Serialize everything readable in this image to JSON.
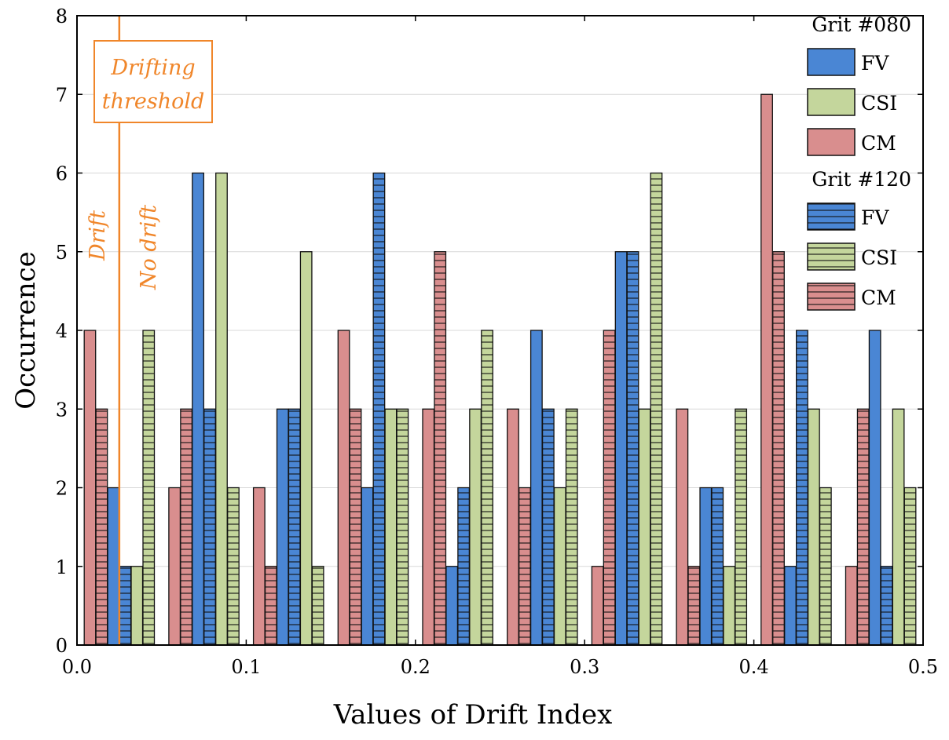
{
  "chart_data": {
    "type": "bar",
    "xlabel": "Values of Drift Index",
    "ylabel": "Occurrence",
    "xlim": [
      0,
      0.5
    ],
    "ylim": [
      0,
      8
    ],
    "x_ticks": [
      "0.0",
      "0.1",
      "0.2",
      "0.3",
      "0.4",
      "0.5"
    ],
    "y_ticks": [
      "0",
      "1",
      "2",
      "3",
      "4",
      "5",
      "6",
      "7",
      "8"
    ],
    "grid": "horizontal",
    "legend_position": "top-right",
    "bin_centers": [
      0.025,
      0.075,
      0.125,
      0.175,
      0.225,
      0.275,
      0.325,
      0.375,
      0.425,
      0.475
    ],
    "groups": [
      {
        "name": "Grit #080",
        "series": [
          {
            "name": "FV",
            "color": "#4a86d4",
            "pattern": "solid",
            "values": [
              2,
              6,
              3,
              2,
              1,
              4,
              5,
              2,
              1,
              4
            ]
          },
          {
            "name": "CSI",
            "color": "#c4d69c",
            "pattern": "solid",
            "values": [
              1,
              6,
              5,
              3,
              3,
              2,
              3,
              1,
              3,
              3
            ]
          },
          {
            "name": "CM",
            "color": "#d98e8e",
            "pattern": "solid",
            "values": [
              4,
              2,
              2,
              4,
              3,
              3,
              1,
              3,
              7,
              1
            ]
          }
        ]
      },
      {
        "name": "Grit #120",
        "series": [
          {
            "name": "FV",
            "color": "#4a86d4",
            "pattern": "hatched",
            "values": [
              1,
              3,
              3,
              6,
              2,
              3,
              5,
              2,
              4,
              1
            ]
          },
          {
            "name": "CSI",
            "color": "#c4d69c",
            "pattern": "hatched",
            "values": [
              4,
              2,
              1,
              3,
              4,
              3,
              6,
              3,
              2,
              2
            ]
          },
          {
            "name": "CM",
            "color": "#d98e8e",
            "pattern": "hatched",
            "values": [
              3,
              3,
              1,
              3,
              5,
              2,
              4,
              1,
              5,
              3
            ]
          }
        ]
      }
    ],
    "threshold": {
      "x": 0.025,
      "label_line1": "Drifting",
      "label_line2": "threshold",
      "left_label": "Drift",
      "right_label": "No drift",
      "color": "#f0862a"
    }
  }
}
